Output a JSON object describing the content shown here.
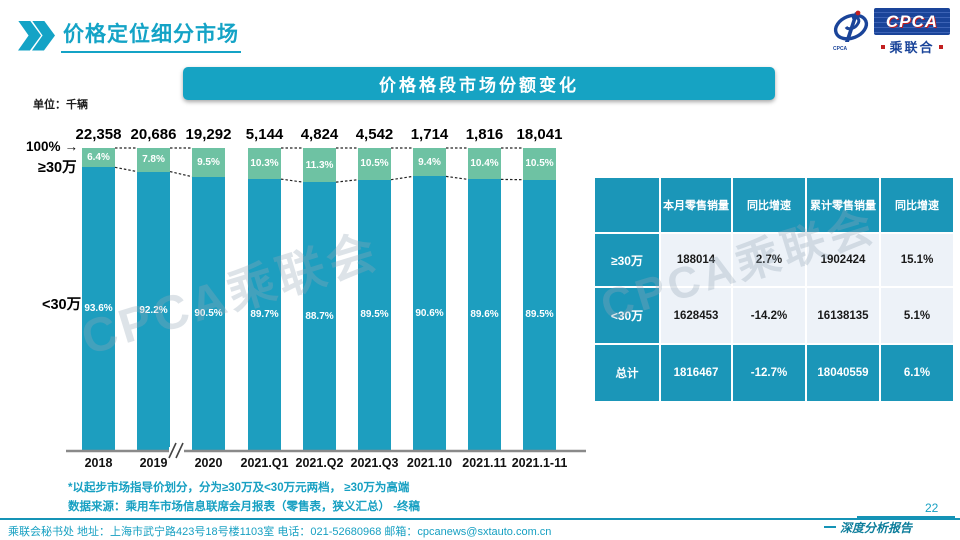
{
  "header": {
    "title": "价格定位细分市场"
  },
  "logo": {
    "cpca": "CPCA",
    "cn": "乘联合",
    "emblem_caption": "CPCA"
  },
  "chart_header": {
    "title": "价格格段市场份额变化",
    "unit_label": "单位：千辆"
  },
  "icons": {
    "arrow_right": "→"
  },
  "chart_data": {
    "type": "stacked-bar-100",
    "title": "价格格段市场份额变化",
    "unit": "千辆",
    "categories": [
      "2018",
      "2019",
      "2020",
      "2021.Q1",
      "2021.Q2",
      "2021.Q3",
      "2021.10",
      "2021.11",
      "2021.1-11"
    ],
    "totals": [
      "22,358",
      "20,686",
      "19,292",
      "5,144",
      "4,824",
      "4,542",
      "1,714",
      "1,816",
      "18,041"
    ],
    "series": [
      {
        "name": "≥30万",
        "values": [
          6.4,
          7.8,
          9.5,
          10.3,
          11.3,
          10.5,
          9.4,
          10.4,
          10.5
        ],
        "color": "#6ec2a3"
      },
      {
        "name": "<30万",
        "values": [
          93.6,
          92.2,
          90.5,
          89.7,
          88.7,
          89.5,
          90.6,
          89.6,
          89.5
        ],
        "color": "#1d9ebf"
      }
    ],
    "y_axis_label": "100%",
    "axis_break_after_index": 2,
    "legend_position": "left",
    "grid": false
  },
  "table": {
    "headers": [
      "",
      "本月零售销量",
      "同比增速",
      "累计零售销量",
      "同比增速"
    ],
    "rows": [
      {
        "label": "≥30万",
        "cells": [
          "188014",
          "2.7%",
          "1902424",
          "15.1%"
        ],
        "emphasis": false
      },
      {
        "label": "<30万",
        "cells": [
          "1628453",
          "-14.2%",
          "16138135",
          "5.1%"
        ],
        "emphasis": false
      },
      {
        "label": "总计",
        "cells": [
          "1816467",
          "-12.7%",
          "18040559",
          "6.1%"
        ],
        "emphasis": true
      }
    ]
  },
  "footnotes": [
    "*以起步市场指导价划分，分为≥30万及<30万元两档， ≥30万为高端",
    "数据来源：乘用车市场信息联席会月报表（零售表，狭义汇总） -终稿"
  ],
  "footer": {
    "contact": "乘联会秘书处   地址：上海市武宁路423号18号楼1103室  电话：021-52680968   邮箱：cpcanews@sxtauto.com.cn",
    "page": "22",
    "report_label": "深度分析报告"
  },
  "watermark": "CPCA乘联会",
  "colors": {
    "accent_teal": "#14a3c6",
    "bar_high_green": "#6ec2a3",
    "bar_low_teal": "#1d9ebf",
    "table_teal": "#1b96b8",
    "row_light": "#edf2f8",
    "logo_blue": "#1a4499",
    "logo_red": "#c22020"
  }
}
